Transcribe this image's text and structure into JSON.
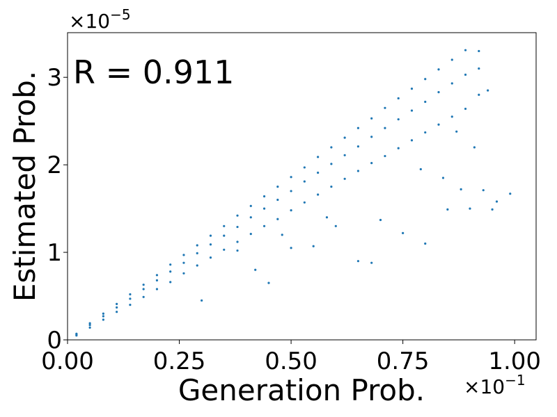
{
  "chart_data": {
    "type": "scatter",
    "annotation": "R = 0.911",
    "xlabel": "Generation Prob.",
    "ylabel": "Estimated Prob.",
    "x_offset": {
      "base": "×10",
      "exponent": "−1"
    },
    "y_offset": {
      "base": "×10",
      "exponent": "−5"
    },
    "color": "#1f77b4",
    "xlim": [
      0,
      1.048
    ],
    "ylim": [
      0,
      3.51
    ],
    "xticks": [
      {
        "value": 0,
        "label": "0.00"
      },
      {
        "value": 0.25,
        "label": "0.25"
      },
      {
        "value": 0.5,
        "label": "0.50"
      },
      {
        "value": 0.75,
        "label": "0.75"
      },
      {
        "value": 1,
        "label": "1.00"
      }
    ],
    "yticks": [
      0,
      1,
      2,
      3
    ],
    "x": [
      0.02,
      0.02,
      0.02,
      0.05,
      0.05,
      0.05,
      0.08,
      0.08,
      0.08,
      0.11,
      0.11,
      0.11,
      0.14,
      0.14,
      0.14,
      0.17,
      0.17,
      0.17,
      0.2,
      0.2,
      0.2,
      0.23,
      0.23,
      0.23,
      0.26,
      0.26,
      0.26,
      0.29,
      0.29,
      0.29,
      0.32,
      0.32,
      0.32,
      0.35,
      0.35,
      0.35,
      0.38,
      0.38,
      0.38,
      0.41,
      0.41,
      0.41,
      0.44,
      0.44,
      0.44,
      0.47,
      0.47,
      0.47,
      0.5,
      0.5,
      0.5,
      0.53,
      0.53,
      0.53,
      0.56,
      0.56,
      0.56,
      0.59,
      0.59,
      0.59,
      0.62,
      0.62,
      0.62,
      0.65,
      0.65,
      0.65,
      0.68,
      0.68,
      0.68,
      0.71,
      0.71,
      0.71,
      0.74,
      0.74,
      0.74,
      0.77,
      0.77,
      0.77,
      0.8,
      0.8,
      0.8,
      0.83,
      0.83,
      0.83,
      0.86,
      0.86,
      0.86,
      0.89,
      0.89,
      0.89,
      0.92,
      0.92,
      0.92,
      0.3,
      0.45,
      0.5,
      0.55,
      0.6,
      0.65,
      0.68,
      0.7,
      0.75,
      0.8,
      0.85,
      0.9,
      0.95,
      0.99,
      0.96,
      0.88,
      0.79,
      0.84,
      0.91,
      0.94,
      0.87,
      0.58,
      0.42,
      0.48,
      0.38,
      0.93
    ],
    "values": [
      0.07,
      0.06,
      0.05,
      0.19,
      0.17,
      0.14,
      0.3,
      0.27,
      0.23,
      0.41,
      0.37,
      0.32,
      0.52,
      0.47,
      0.4,
      0.63,
      0.58,
      0.49,
      0.74,
      0.68,
      0.58,
      0.86,
      0.78,
      0.66,
      0.97,
      0.88,
      0.76,
      1.08,
      0.99,
      0.85,
      1.19,
      1.09,
      0.94,
      1.3,
      1.19,
      1.03,
      1.42,
      1.29,
      1.12,
      1.53,
      1.4,
      1.21,
      1.64,
      1.5,
      1.3,
      1.75,
      1.6,
      1.38,
      1.86,
      1.7,
      1.48,
      1.97,
      1.81,
      1.57,
      2.09,
      1.91,
      1.66,
      2.2,
      2.01,
      1.75,
      2.31,
      2.11,
      1.84,
      2.42,
      2.21,
      1.93,
      2.53,
      2.32,
      2.02,
      2.65,
      2.42,
      2.1,
      2.76,
      2.52,
      2.19,
      2.87,
      2.62,
      2.28,
      2.98,
      2.72,
      2.37,
      3.09,
      2.83,
      2.46,
      3.2,
      2.93,
      2.55,
      3.31,
      3.03,
      2.64,
      3.3,
      3.1,
      2.8,
      0.45,
      0.65,
      1.05,
      1.07,
      1.3,
      0.9,
      0.88,
      1.37,
      1.22,
      1.1,
      1.49,
      1.5,
      1.49,
      1.67,
      1.58,
      1.72,
      1.95,
      1.85,
      2.2,
      2.85,
      2.38,
      1.4,
      0.8,
      1.2,
      1.02,
      1.71
    ]
  }
}
